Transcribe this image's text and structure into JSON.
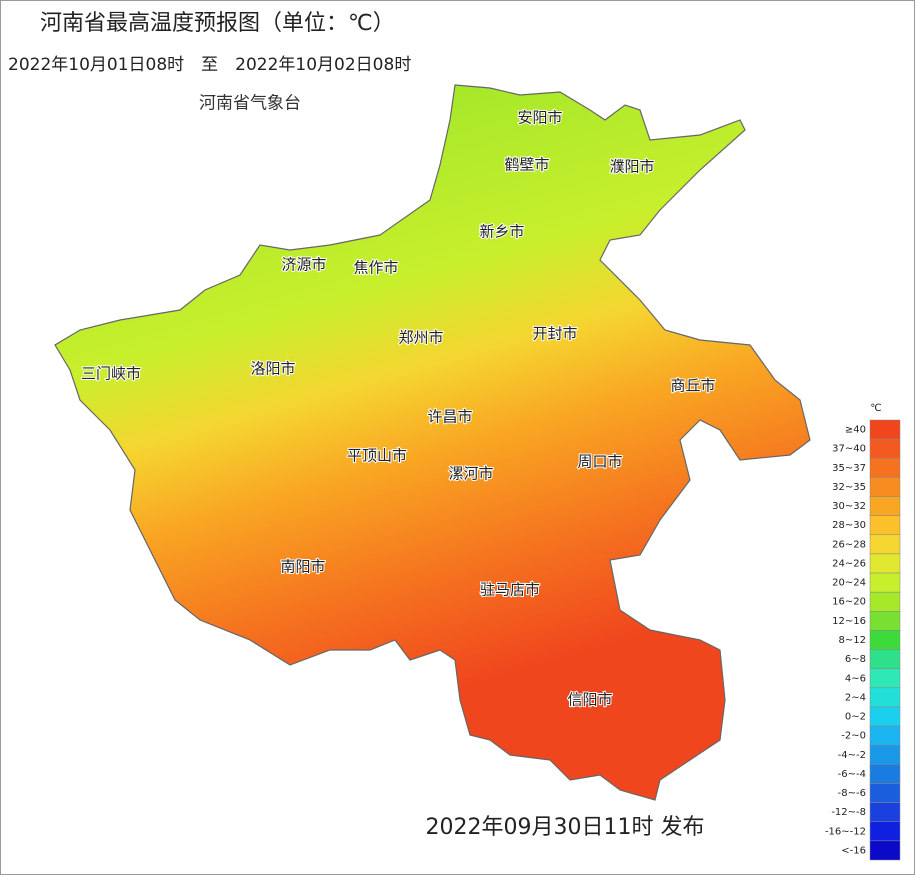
{
  "header": {
    "title": "河南省最高温度预报图（单位：℃）",
    "period": "2022年10月01日08时　至　2022年10月02日08时",
    "issuer": "河南省气象台"
  },
  "map": {
    "cities": [
      "安阳市",
      "鹤壁市",
      "濮阳市",
      "新乡市",
      "济源市",
      "焦作市",
      "郑州市",
      "开封市",
      "三门峡市",
      "洛阳市",
      "商丘市",
      "许昌市",
      "平顶山市",
      "周口市",
      "漯河市",
      "南阳市",
      "驻马店市",
      "信阳市"
    ]
  },
  "legend": {
    "unit": "℃",
    "items": [
      {
        "label": "≥40",
        "color": "#f0461e"
      },
      {
        "label": "37~40",
        "color": "#f25a1f"
      },
      {
        "label": "35~37",
        "color": "#f5731f"
      },
      {
        "label": "32~35",
        "color": "#f78c20"
      },
      {
        "label": "30~32",
        "color": "#f9a623"
      },
      {
        "label": "28~30",
        "color": "#fbc02a"
      },
      {
        "label": "26~28",
        "color": "#f5d630"
      },
      {
        "label": "24~26",
        "color": "#e2e830"
      },
      {
        "label": "20~24",
        "color": "#c8ef2c"
      },
      {
        "label": "16~20",
        "color": "#a6e82a"
      },
      {
        "label": "12~16",
        "color": "#78e030"
      },
      {
        "label": "8~12",
        "color": "#3ddb3a"
      },
      {
        "label": "6~8",
        "color": "#2ee08a"
      },
      {
        "label": "4~6",
        "color": "#2ee8b8"
      },
      {
        "label": "2~4",
        "color": "#22e0d8"
      },
      {
        "label": "0~2",
        "color": "#1ad0ee"
      },
      {
        "label": "-2~0",
        "color": "#1ab4f0"
      },
      {
        "label": "-4~-2",
        "color": "#1a98e8"
      },
      {
        "label": "-6~-4",
        "color": "#1a7ce0"
      },
      {
        "label": "-8~-6",
        "color": "#1a5ede"
      },
      {
        "label": "-12~-8",
        "color": "#1a40e0"
      },
      {
        "label": "-16~-12",
        "color": "#1020e0"
      },
      {
        "label": "<-16",
        "color": "#0a0ac8"
      }
    ]
  },
  "footer": {
    "published": "2022年09月30日11时 发布"
  }
}
